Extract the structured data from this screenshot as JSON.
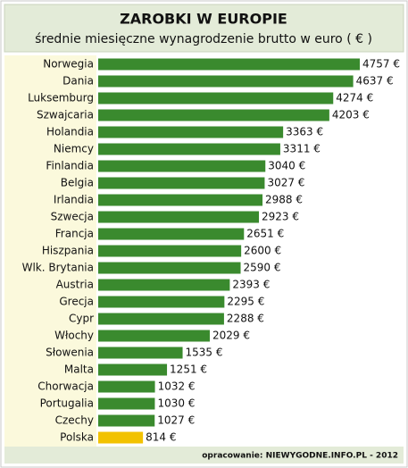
{
  "chart_data": {
    "type": "bar",
    "orientation": "horizontal",
    "title": "ZAROBKI W EUROPIE",
    "subtitle": "średnie miesięczne wynagrodzenie brutto w euro ( € )",
    "categories": [
      "Norwegia",
      "Dania",
      "Luksemburg",
      "Szwajcaria",
      "Holandia",
      "Niemcy",
      "Finlandia",
      "Belgia",
      "Irlandia",
      "Szwecja",
      "Francja",
      "Hiszpania",
      "Wlk. Brytania",
      "Austria",
      "Grecja",
      "Cypr",
      "Włochy",
      "Słowenia",
      "Malta",
      "Chorwacja",
      "Portugalia",
      "Czechy",
      "Polska"
    ],
    "values": [
      4757,
      4637,
      4274,
      4203,
      3363,
      3311,
      3040,
      3027,
      2988,
      2923,
      2651,
      2600,
      2590,
      2393,
      2295,
      2288,
      2029,
      1535,
      1251,
      1032,
      1030,
      1027,
      814
    ],
    "value_labels": [
      "4757 €",
      "4637 €",
      "4274 €",
      "4203 €",
      "3363 €",
      "3311 €",
      "3040 €",
      "3027 €",
      "2988 €",
      "2923 €",
      "2651 €",
      "2600 €",
      "2590 €",
      "2393 €",
      "2295 €",
      "2288 €",
      "2029 €",
      "1535 €",
      "1251 €",
      "1032 €",
      "1030 €",
      "1027 €",
      "814 €"
    ],
    "colors": [
      "#3a8a2e",
      "#3a8a2e",
      "#3a8a2e",
      "#3a8a2e",
      "#3a8a2e",
      "#3a8a2e",
      "#3a8a2e",
      "#3a8a2e",
      "#3a8a2e",
      "#3a8a2e",
      "#3a8a2e",
      "#3a8a2e",
      "#3a8a2e",
      "#3a8a2e",
      "#3a8a2e",
      "#3a8a2e",
      "#3a8a2e",
      "#3a8a2e",
      "#3a8a2e",
      "#3a8a2e",
      "#3a8a2e",
      "#3a8a2e",
      "#f2c200"
    ],
    "source": "opracowanie: NIEWYGODNE.INFO.PL - 2012"
  }
}
